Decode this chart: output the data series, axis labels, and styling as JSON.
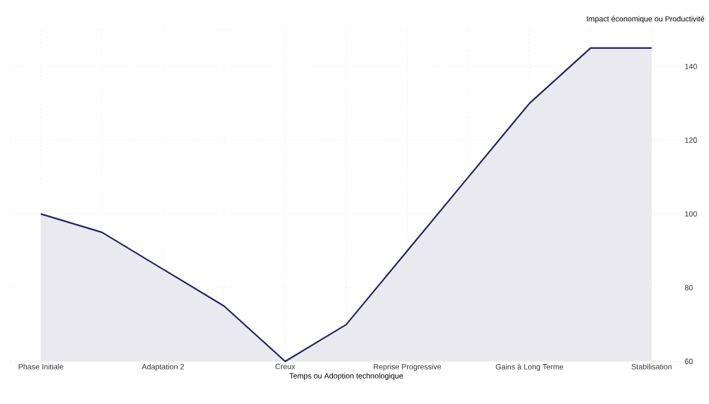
{
  "chart_data": {
    "type": "area",
    "xlabel": "Temps ou Adoption technologique",
    "ylabel": "Impact économique ou Productivité",
    "categories": [
      "Phase Initiale",
      null,
      "Adaptation 2",
      null,
      "Creux",
      null,
      "Reprise Progressive",
      null,
      "Gains à Long Terme",
      null,
      "Stabilisation"
    ],
    "values": [
      100,
      95,
      85,
      75,
      60,
      70,
      90,
      110,
      130,
      145,
      145
    ],
    "color": "#22235e",
    "ylim": [
      60,
      150
    ],
    "yticks": [
      60,
      80,
      100,
      120,
      140
    ],
    "grid": true
  }
}
